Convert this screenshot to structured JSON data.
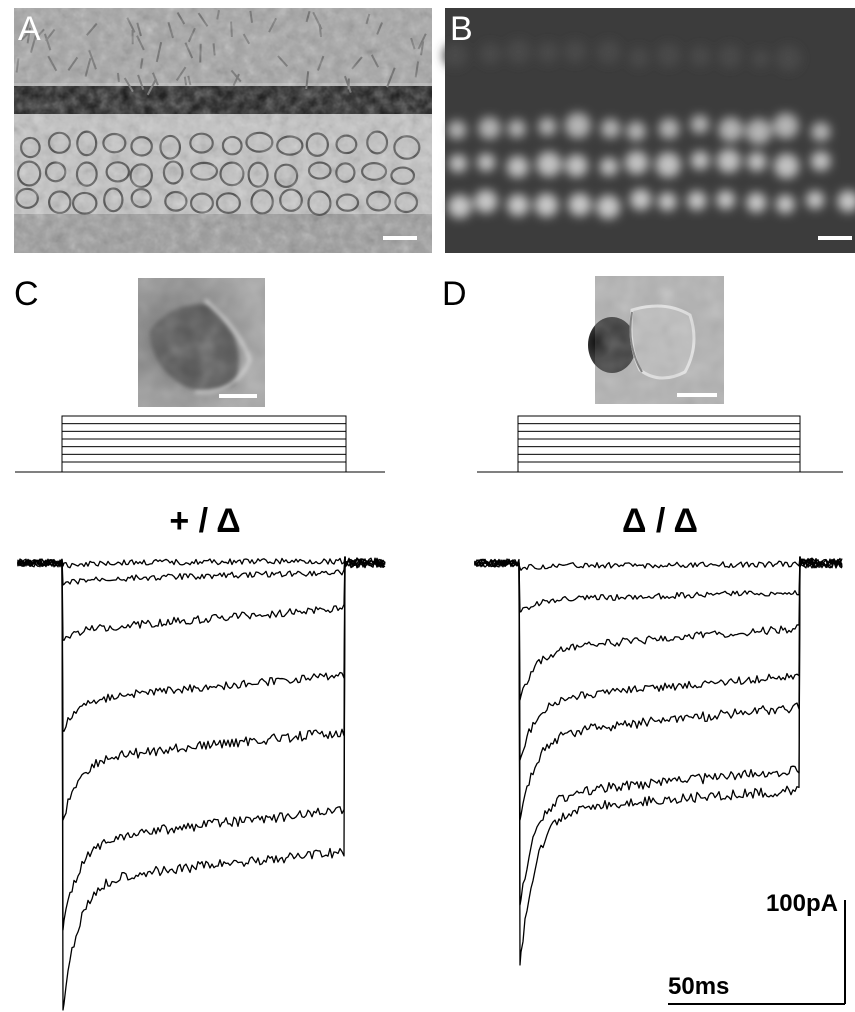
{
  "figure": {
    "panels": {
      "a": {
        "label": "A"
      },
      "b": {
        "label": "B"
      },
      "c": {
        "label": "C",
        "genotype": "+ / Δ"
      },
      "d": {
        "label": "D",
        "genotype": "Δ / Δ"
      }
    },
    "scale_bar": {
      "current": "100pA",
      "time": "50ms"
    }
  },
  "colors": {
    "trace": "#000000",
    "photo_dark": "#2a2a2a",
    "fluor_bg": "#3a3a3a"
  }
}
